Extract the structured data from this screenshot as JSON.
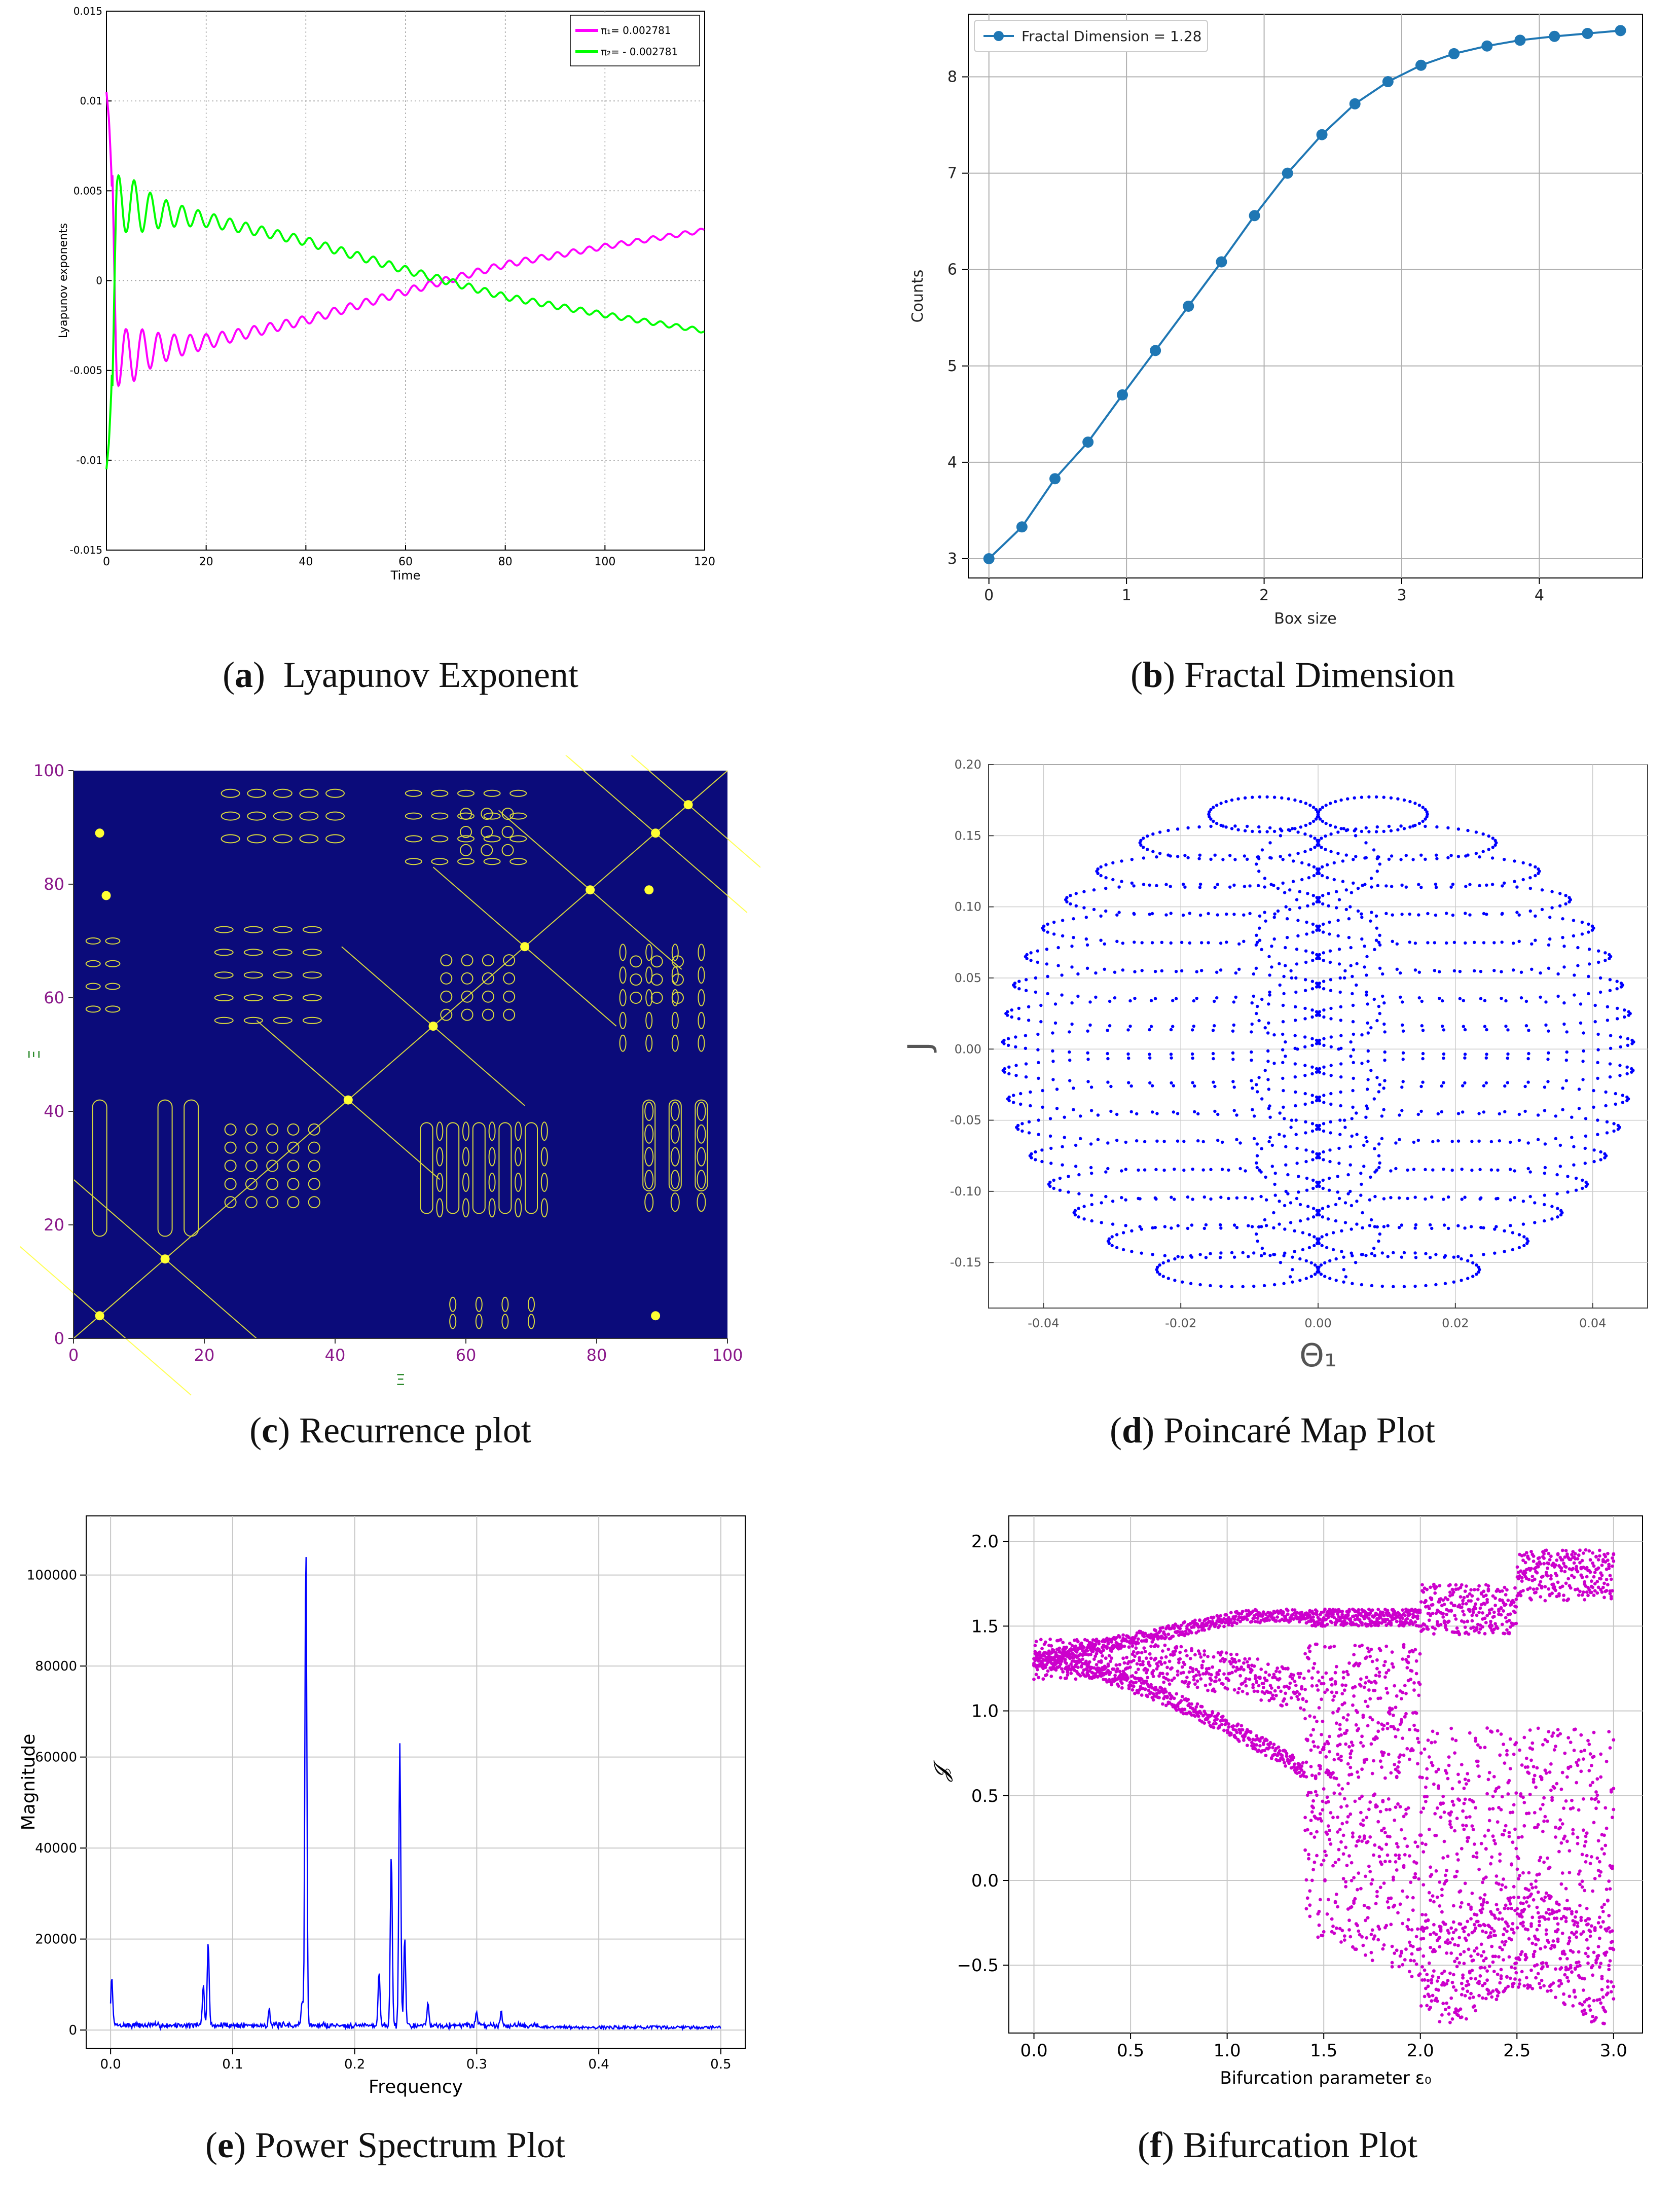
{
  "figure": {
    "captions": [
      {
        "letter": "a",
        "text": "Lyapunov Exponent"
      },
      {
        "letter": "b",
        "text": "Fractal Dimension"
      },
      {
        "letter": "c",
        "text": "Recurrence plot"
      },
      {
        "letter": "d",
        "text": "Poincaré Map Plot"
      },
      {
        "letter": "e",
        "text": "Power Spectrum Plot"
      },
      {
        "letter": "f",
        "text": "Bifurcation Plot"
      }
    ]
  },
  "colors": {
    "magenta": "#ff00ff",
    "green": "#00ff00",
    "mpl_blue": "#1f77b4",
    "navy": "#0b0b7a",
    "yellow": "#ffff33",
    "blue": "#0000ff",
    "bif": "#cc00cc",
    "purple": "#8b1a8b"
  },
  "chart_data": [
    {
      "id": "a",
      "type": "line",
      "title": "",
      "xlabel": "Time",
      "ylabel": "Lyapunov exponents",
      "xlim": [
        0,
        120
      ],
      "ylim": [
        -0.015,
        0.015
      ],
      "xticks": [
        0,
        20,
        40,
        60,
        80,
        100,
        120
      ],
      "yticks": [
        -0.015,
        -0.01,
        -0.005,
        0,
        0.005,
        0.01,
        0.015
      ],
      "ytick_labels": [
        "-0.015",
        "-0.01",
        "-0.005",
        "0",
        "0.005",
        "0.01",
        "0.015"
      ],
      "grid": true,
      "legend": "top-right",
      "series": [
        {
          "name": "λ1",
          "legend_label": "π₁= 0.002781",
          "color": "#ff00ff",
          "x": [
            0,
            0.5,
            1,
            2,
            4,
            6,
            10,
            20,
            40,
            60,
            68,
            80,
            100,
            120
          ],
          "values": [
            0.0105,
            0.009,
            0.006,
            -0.0035,
            -0.0045,
            -0.004,
            -0.0038,
            -0.0034,
            -0.0022,
            -0.0006,
            0.0,
            0.0009,
            0.0019,
            0.0028
          ]
        },
        {
          "name": "λ2",
          "legend_label": "π₂= - 0.002781",
          "color": "#00ff00",
          "x": [
            0,
            0.5,
            1,
            2,
            4,
            6,
            10,
            20,
            40,
            60,
            68,
            80,
            100,
            120
          ],
          "values": [
            -0.0105,
            -0.009,
            -0.006,
            0.0035,
            0.0045,
            0.004,
            0.0038,
            0.0034,
            0.0022,
            0.0006,
            0.0,
            -0.0009,
            -0.0019,
            -0.0028
          ]
        }
      ]
    },
    {
      "id": "b",
      "type": "line",
      "xlabel": "Box size",
      "ylabel": "Counts",
      "xlim": [
        -0.15,
        4.75
      ],
      "ylim": [
        2.8,
        8.65
      ],
      "xticks": [
        0,
        1,
        2,
        3,
        4
      ],
      "yticks": [
        3,
        4,
        5,
        6,
        7,
        8
      ],
      "grid": true,
      "legend": "top-left",
      "series": [
        {
          "name": "Fractal Dimension = 1.28",
          "color": "#1f77b4",
          "x": [
            0,
            0.24,
            0.48,
            0.72,
            0.97,
            1.21,
            1.45,
            1.69,
            1.93,
            2.17,
            2.42,
            2.66,
            2.9,
            3.14,
            3.38,
            3.62,
            3.86,
            4.11,
            4.35,
            4.59
          ],
          "values": [
            3.0,
            3.33,
            3.83,
            4.21,
            4.7,
            5.16,
            5.62,
            6.08,
            6.56,
            7.0,
            7.4,
            7.72,
            7.95,
            8.12,
            8.24,
            8.32,
            8.38,
            8.42,
            8.45,
            8.48
          ]
        }
      ]
    },
    {
      "id": "c",
      "type": "heatmap",
      "xlabel": "Ξ",
      "ylabel": "Ξ",
      "xlim": [
        0,
        100
      ],
      "ylim": [
        0,
        100
      ],
      "xticks": [
        0,
        20,
        40,
        60,
        80,
        100
      ],
      "yticks": [
        0,
        20,
        40,
        60,
        80,
        100
      ],
      "background": "#0b0b7a",
      "foreground": "#ffff33",
      "structure": "symmetric recurrence pattern about the main diagonal",
      "bright_points": [
        [
          14,
          14
        ],
        [
          42,
          42
        ],
        [
          55,
          55
        ],
        [
          69,
          69
        ],
        [
          79,
          79
        ],
        [
          89,
          89
        ],
        [
          4,
          89
        ],
        [
          89,
          4
        ],
        [
          4,
          4
        ],
        [
          94,
          94
        ],
        [
          5,
          78
        ],
        [
          88,
          79
        ]
      ]
    },
    {
      "id": "d",
      "type": "scatter",
      "xlabel": "Θ₁",
      "ylabel": "J",
      "xlim": [
        -0.048,
        0.048
      ],
      "ylim": [
        -0.182,
        0.2
      ],
      "xticks": [
        -0.04,
        -0.02,
        0.0,
        0.02,
        0.04
      ],
      "xtick_labels": [
        "-0.04",
        "-0.02",
        "0.00",
        "0.02",
        "0.04"
      ],
      "yticks": [
        -0.15,
        -0.1,
        -0.05,
        0.0,
        0.05,
        0.1,
        0.15,
        0.2
      ],
      "ytick_labels": [
        "-0.15",
        "-0.10",
        "-0.05",
        "0.00",
        "0.05",
        "0.10",
        "0.15",
        "0.20"
      ],
      "grid": true,
      "color": "#0000ff",
      "envelope": {
        "x_half_width": 0.046,
        "j_min": -0.18,
        "j_max": 0.176
      },
      "bands_j": [
        -0.155,
        -0.135,
        -0.115,
        -0.095,
        -0.075,
        -0.055,
        -0.035,
        -0.015,
        0.005,
        0.025,
        0.045,
        0.065,
        0.085,
        0.105,
        0.125,
        0.145,
        0.165
      ]
    },
    {
      "id": "e",
      "type": "line",
      "xlabel": "Frequency",
      "ylabel": "Magnitude",
      "xlim": [
        -0.02,
        0.52
      ],
      "ylim": [
        -4000,
        113000
      ],
      "xticks": [
        0.0,
        0.1,
        0.2,
        0.3,
        0.4,
        0.5
      ],
      "xtick_labels": [
        "0.0",
        "0.1",
        "0.2",
        "0.3",
        "0.4",
        "0.5"
      ],
      "yticks": [
        0,
        20000,
        40000,
        60000,
        80000,
        100000
      ],
      "grid": true,
      "color": "#0000ff",
      "peaks": [
        {
          "f": 0.001,
          "mag": 10500
        },
        {
          "f": 0.08,
          "mag": 18500
        },
        {
          "f": 0.076,
          "mag": 9000
        },
        {
          "f": 0.13,
          "mag": 3500
        },
        {
          "f": 0.157,
          "mag": 5500
        },
        {
          "f": 0.16,
          "mag": 107000
        },
        {
          "f": 0.22,
          "mag": 12000
        },
        {
          "f": 0.23,
          "mag": 38000
        },
        {
          "f": 0.237,
          "mag": 62000
        },
        {
          "f": 0.241,
          "mag": 19000
        },
        {
          "f": 0.26,
          "mag": 5000
        },
        {
          "f": 0.3,
          "mag": 3000
        },
        {
          "f": 0.32,
          "mag": 3000
        }
      ]
    },
    {
      "id": "f",
      "type": "scatter",
      "xlabel": "Bifurcation parameter ε₀",
      "ylabel": "𝓙",
      "xlim": [
        -0.13,
        3.15
      ],
      "ylim": [
        -0.9,
        2.15
      ],
      "xticks": [
        0.0,
        0.5,
        1.0,
        1.5,
        2.0,
        2.5,
        3.0
      ],
      "xtick_labels": [
        "0.0",
        "0.5",
        "1.0",
        "1.5",
        "2.0",
        "2.5",
        "3.0"
      ],
      "yticks": [
        -0.5,
        0.0,
        0.5,
        1.0,
        1.5,
        2.0
      ],
      "ytick_labels": [
        "−0.5",
        "0.0",
        "0.5",
        "1.0",
        "1.5",
        "2.0"
      ],
      "grid": true,
      "color": "#cc00cc"
    }
  ]
}
